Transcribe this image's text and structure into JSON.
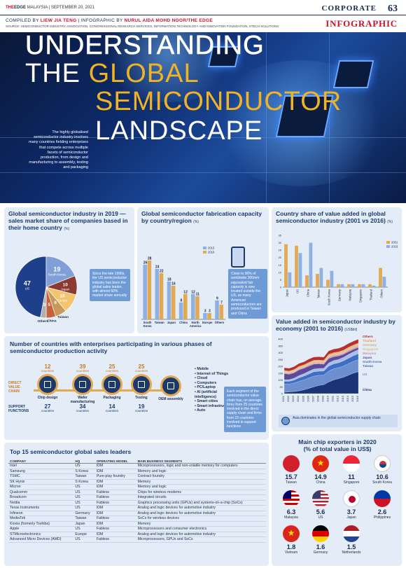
{
  "header": {
    "paper_brand_a": "THE",
    "paper_brand_b": "EDGE",
    "paper_rest": "MALAYSIA | SEPTEMBER 20, 2021",
    "section": "CORPORATE",
    "page_number": "63",
    "credits_label_a": "COMPILED BY",
    "credits_name_a": "LIEW JIA TENG",
    "credits_label_b": "| INFOGRAPHIC BY",
    "credits_name_b": "NURUL AIDA MOHD NOOR/THE EDGE",
    "source": "SOURCE: SEMICONDUCTOR INDUSTRY ASSOCIATION, CONGRESSIONAL RESEARCH SERVICES, INFORMATION TECHNOLOGY AND INNOVATION FOUNDATION, STECH SOLUTIONS",
    "tag": "INFOGRAPHIC"
  },
  "hero": {
    "line1": "UNDERSTANDING",
    "line2a": "THE",
    "line2b": "GLOBAL",
    "line3": "SEMICONDUCTOR",
    "line4": "LANDSCAPE",
    "description": "The highly globalised semiconductor industry involves many countries fielding enterprises that compete across multiple facets of semiconductor production, from design and manufacturing to assembly, testing and packaging"
  },
  "pie_panel": {
    "title": "Global semiconductor industry in 2019 — sales market share of companies based in their home country",
    "unit": "(%)",
    "note": "Since the late 1990s, the US semiconductor industry has been the global sales leader, with almost 50% market share annually",
    "colors": {
      "US": "#1e3f8a",
      "South Korea": "#7f9fd6",
      "Japan": "#8b3a2f",
      "Europe": "#f2c46d",
      "Taiwan": "#c79a5a",
      "China": "#c6623b",
      "Others": "#b0b0b0"
    }
  },
  "fab_panel": {
    "title": "Global semiconductor fabrication capacity by country/region",
    "unit": "(%)",
    "note": "Close to 90% of worldwide 300mm equivalent fab capacity is now located outside the US, as many American semiconductors are produced in Taiwan and China"
  },
  "value_panel": {
    "title": "Country share of value added in global semiconductor industry (2001 vs 2016)",
    "unit": "(%)"
  },
  "area_panel": {
    "title": "Value added in semiconductor industry by economy (2001 to 2016)",
    "unit": "(US$bil)",
    "note": "Asia dominates in the global semiconductor supply chain"
  },
  "chain_panel": {
    "title": "Number of countries with enterprises participating in various phases of semiconductor production activity",
    "direct_label": "DIRECT VALUE CHAIN",
    "support_label": "SUPPORT FUNCTIONS",
    "countries_word": "countries",
    "steps": [
      {
        "name": "Chip design",
        "direct": "12",
        "support": "27"
      },
      {
        "name": "Wafer manufacturing",
        "direct": "39",
        "support": "34"
      },
      {
        "name": "Packaging",
        "direct": "25",
        "support": "14"
      },
      {
        "name": "Testing",
        "direct": "25",
        "support": "19"
      },
      {
        "name": "OEM assembly",
        "direct": "",
        "support": ""
      }
    ],
    "uses": [
      "Mobile",
      "Internet of Things",
      "Cloud",
      "Computers",
      "PC/Laptop",
      "AI (artificial intelligence)",
      "Smart cities",
      "Smart infrastructure",
      "Auto"
    ],
    "note": "Each segment of the semiconductor value chain has, on average, firms from 25 countries involved in the direct supply chain and firms from 23 countries involved in support functions"
  },
  "table_panel": {
    "title": "Top 15 semiconductor global sales leaders",
    "headers": [
      "COMPANY",
      "HQ",
      "OPERATING MODEL",
      "MAIN BUSINESS SEGMENTS"
    ],
    "rows": [
      [
        "Intel",
        "US",
        "IDM",
        "Microprocessors, logic and non-volatile memory for computers"
      ],
      [
        "Samsung",
        "S Korea",
        "IDM",
        "Memory and logic"
      ],
      [
        "TSMC",
        "Taiwan",
        "Pure-play foundry",
        "Contract foundry"
      ],
      [
        "SK Hynix",
        "S Korea",
        "IDM",
        "Memory"
      ],
      [
        "Micron",
        "US",
        "IDM",
        "Memory and logic"
      ],
      [
        "Qualcomm",
        "US",
        "Fabless",
        "Chips for wireless modems"
      ],
      [
        "Broadcom",
        "US",
        "Fabless",
        "Integrated circuits"
      ],
      [
        "Nvidia",
        "US",
        "Fabless",
        "Graphics processing units (GPUs) and systems-on-a-chip (SoCs)"
      ],
      [
        "Texas Instruments",
        "US",
        "IDM",
        "Analog and logic devices for automotive industry"
      ],
      [
        "Infineon",
        "Germany",
        "IDM",
        "Analog and logic devices for automotive industry"
      ],
      [
        "MediaTek",
        "Taiwan",
        "Fabless",
        "SoCs for wireless devices"
      ],
      [
        "Kioxia (formerly Toshiba)",
        "Japan",
        "IDM",
        "Memory"
      ],
      [
        "Apple",
        "US",
        "Fabless",
        "Microprocessors and consumer electronics"
      ],
      [
        "STMicroelectronics",
        "Europe",
        "IDM",
        "Analog and logic devices for automotive industry"
      ],
      [
        "Advanced Micro Devices (AMD)",
        "US",
        "Fabless",
        "Microprocessors, GPUs and SoCs"
      ]
    ]
  },
  "exporters_panel": {
    "title": "Main chip exporters in 2020",
    "subtitle": "(% of total value in US$)",
    "items": [
      {
        "value": "15.7",
        "name": "Taiwan",
        "flag": "taiwan-flag-icon"
      },
      {
        "value": "14.9",
        "name": "China",
        "flag": "china-flag-icon"
      },
      {
        "value": "11",
        "name": "Singapore",
        "flag": "singapore-flag-icon"
      },
      {
        "value": "10.6",
        "name": "South Korea",
        "flag": "south-korea-flag-icon"
      },
      {
        "value": "6.3",
        "name": "Malaysia",
        "flag": "malaysia-flag-icon"
      },
      {
        "value": "5.6",
        "name": "US",
        "flag": "us-flag-icon"
      },
      {
        "value": "3.7",
        "name": "Japan",
        "flag": "japan-flag-icon"
      },
      {
        "value": "2.6",
        "name": "Philippines",
        "flag": "philippines-flag-icon"
      },
      {
        "value": "1.8",
        "name": "Vietnam",
        "flag": "vietnam-flag-icon"
      },
      {
        "value": "1.6",
        "name": "Germany",
        "flag": "germany-flag-icon"
      },
      {
        "value": "1.5",
        "name": "Netherlands",
        "flag": "netherlands-flag-icon"
      }
    ]
  },
  "chart_data": [
    {
      "type": "pie",
      "categories": [
        "US",
        "South Korea",
        "Japan",
        "Europe",
        "Taiwan",
        "China",
        "Others"
      ],
      "values": [
        47,
        19,
        10,
        10,
        6,
        5,
        3
      ]
    },
    {
      "type": "bar",
      "categories": [
        "South Korea",
        "Taiwan",
        "Japan",
        "China",
        "North America",
        "Europe",
        "Others"
      ],
      "series": [
        {
          "name": "2015",
          "values": [
            26,
            24,
            18,
            8,
            12,
            3,
            9
          ]
        },
        {
          "name": "2019",
          "values": [
            28,
            22,
            16,
            12,
            11,
            3,
            7
          ]
        }
      ],
      "ylim": [
        0,
        30
      ],
      "colors": {
        "2015": "#8fb0e3",
        "2019": "#e3a951"
      }
    },
    {
      "type": "bar",
      "categories": [
        "Japan",
        "US",
        "China",
        "Taiwan",
        "South Korea",
        "Germany",
        "Malaysia",
        "Singapore",
        "Thailand",
        "Others"
      ],
      "series": [
        {
          "name": "2001",
          "values": [
            29,
            28,
            8,
            9,
            5,
            2,
            2,
            2,
            2,
            13
          ]
        },
        {
          "name": "2016",
          "values": [
            10,
            23,
            30,
            13,
            11,
            2,
            2,
            2,
            1,
            7
          ]
        }
      ],
      "ylim": [
        0,
        35
      ],
      "yticks": [
        0,
        5,
        10,
        15,
        20,
        25,
        30,
        35
      ],
      "colors": {
        "2001": "#e3a951",
        "2016": "#8fb0e3"
      }
    },
    {
      "type": "area",
      "x": [
        "2001",
        "2002",
        "2003",
        "2004",
        "2005",
        "2006",
        "2007",
        "2008",
        "2009",
        "2010",
        "2011",
        "2012",
        "2013",
        "2014",
        "2015",
        "2016"
      ],
      "ylim": [
        0,
        400
      ],
      "yticks": [
        0,
        50,
        100,
        150,
        200,
        250,
        300,
        350,
        400
      ],
      "series": [
        {
          "name": "China",
          "values": [
            10,
            12,
            15,
            20,
            28,
            38,
            50,
            60,
            65,
            85,
            100,
            110,
            120,
            135,
            150,
            160
          ],
          "color": "#1a3475"
        },
        {
          "name": "US",
          "values": [
            60,
            58,
            62,
            70,
            72,
            76,
            78,
            74,
            70,
            80,
            82,
            80,
            82,
            84,
            86,
            88
          ],
          "color": "#6d8fd0"
        },
        {
          "name": "Taiwan",
          "values": [
            20,
            20,
            22,
            26,
            28,
            30,
            32,
            30,
            30,
            36,
            36,
            36,
            38,
            40,
            42,
            44
          ],
          "color": "#3f6fc4"
        },
        {
          "name": "South Korea",
          "values": [
            12,
            12,
            14,
            16,
            18,
            20,
            20,
            20,
            20,
            24,
            24,
            24,
            26,
            28,
            28,
            30
          ],
          "color": "#a9bfe8"
        },
        {
          "name": "Japan",
          "values": [
            45,
            40,
            40,
            42,
            40,
            38,
            36,
            34,
            30,
            32,
            28,
            26,
            22,
            20,
            18,
            16
          ],
          "color": "#5c4b99"
        },
        {
          "name": "Malaysia",
          "values": [
            6,
            6,
            6,
            7,
            7,
            8,
            8,
            8,
            8,
            9,
            9,
            9,
            9,
            10,
            10,
            10
          ],
          "color": "#d38fb6"
        },
        {
          "name": "Singapore",
          "values": [
            6,
            6,
            6,
            7,
            7,
            8,
            8,
            8,
            8,
            9,
            9,
            9,
            9,
            10,
            10,
            10
          ],
          "color": "#e0c07a"
        },
        {
          "name": "Germany",
          "values": [
            6,
            6,
            6,
            6,
            6,
            6,
            6,
            6,
            6,
            6,
            6,
            6,
            6,
            6,
            6,
            6
          ],
          "color": "#c8b084"
        },
        {
          "name": "Thailand",
          "values": [
            5,
            5,
            5,
            5,
            5,
            5,
            6,
            6,
            6,
            6,
            6,
            6,
            6,
            6,
            6,
            6
          ],
          "color": "#e8a24c"
        },
        {
          "name": "Others",
          "values": [
            20,
            20,
            22,
            22,
            22,
            24,
            24,
            24,
            24,
            26,
            26,
            26,
            28,
            28,
            28,
            28
          ],
          "color": "#b4312f"
        }
      ]
    }
  ]
}
